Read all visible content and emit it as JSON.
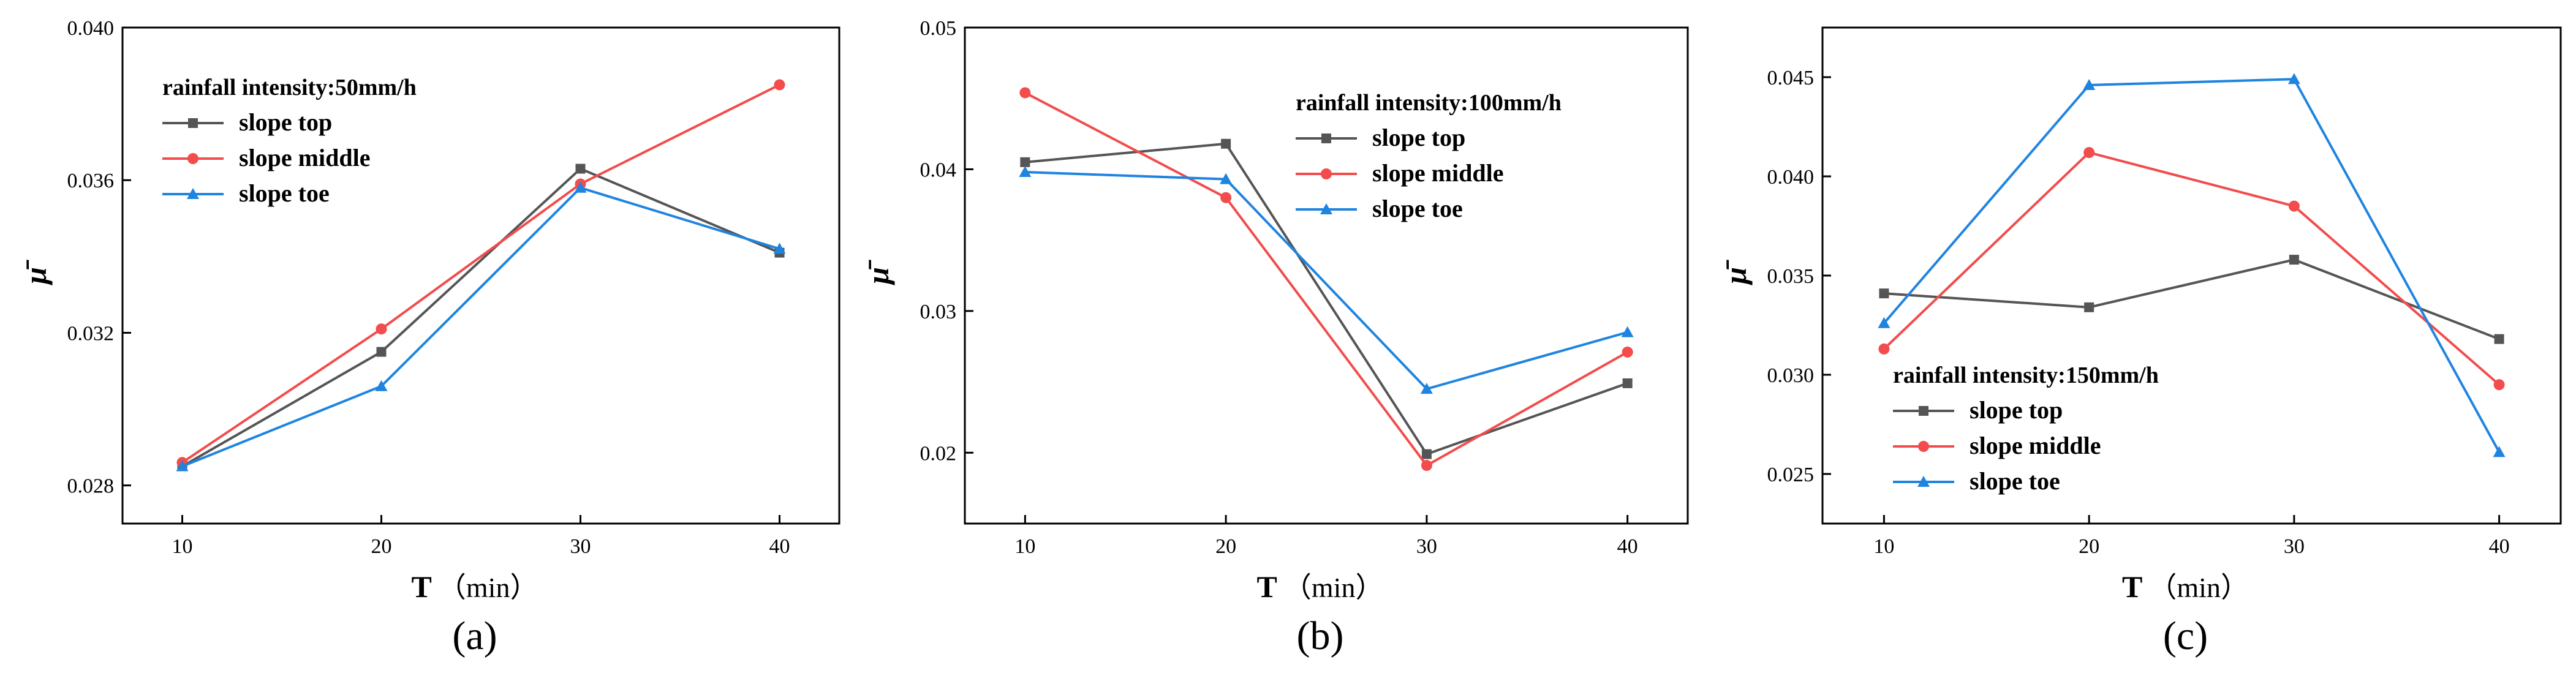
{
  "chart_data": [
    {
      "type": "line",
      "panel_label": "(a)",
      "title": "",
      "xlabel": "T",
      "xlabel_unit": "（min）",
      "ylabel": "μ̄",
      "x": [
        10,
        20,
        30,
        40
      ],
      "xticks": [
        "10",
        "20",
        "30",
        "40"
      ],
      "xlim": [
        7,
        43
      ],
      "ylim": [
        0.027,
        0.04
      ],
      "yticks": [
        0.028,
        0.032,
        0.036,
        0.04
      ],
      "ytick_labels": [
        "0.028",
        "0.032",
        "0.036",
        "0.040"
      ],
      "legend": {
        "title": "rainfall intensity:50mm/h",
        "placement": "upper-left"
      },
      "grid": false,
      "series": [
        {
          "name": "slope top",
          "color": "#555555",
          "marker": "square",
          "values": [
            0.0285,
            0.0315,
            0.0363,
            0.0341
          ]
        },
        {
          "name": "slope middle",
          "color": "#f24c4c",
          "marker": "circle",
          "values": [
            0.0286,
            0.0321,
            0.0359,
            0.0385
          ]
        },
        {
          "name": "slope toe",
          "color": "#1f84e0",
          "marker": "triangle",
          "values": [
            0.0285,
            0.0306,
            0.0358,
            0.0342
          ]
        }
      ]
    },
    {
      "type": "line",
      "panel_label": "(b)",
      "title": "",
      "xlabel": "T",
      "xlabel_unit": "（min）",
      "ylabel": "μ̄",
      "x": [
        10,
        20,
        30,
        40
      ],
      "xticks": [
        "10",
        "20",
        "30",
        "40"
      ],
      "xlim": [
        7,
        43
      ],
      "ylim": [
        0.015,
        0.05
      ],
      "yticks": [
        0.02,
        0.03,
        0.04,
        0.05
      ],
      "ytick_labels": [
        "0.02",
        "0.03",
        "0.04",
        "0.05"
      ],
      "legend": {
        "title": "rainfall intensity:100mm/h",
        "placement": "upper-right"
      },
      "grid": false,
      "series": [
        {
          "name": "slope top",
          "color": "#555555",
          "marker": "square",
          "values": [
            0.0405,
            0.0418,
            0.0199,
            0.0249
          ]
        },
        {
          "name": "slope middle",
          "color": "#f24c4c",
          "marker": "circle",
          "values": [
            0.0454,
            0.038,
            0.0191,
            0.0271
          ]
        },
        {
          "name": "slope toe",
          "color": "#1f84e0",
          "marker": "triangle",
          "values": [
            0.0398,
            0.0393,
            0.0245,
            0.0285
          ]
        }
      ]
    },
    {
      "type": "line",
      "panel_label": "(c)",
      "title": "",
      "xlabel": "T",
      "xlabel_unit": "（min）",
      "ylabel": "μ̄",
      "x": [
        10,
        20,
        30,
        40
      ],
      "xticks": [
        "10",
        "20",
        "30",
        "40"
      ],
      "xlim": [
        7,
        43
      ],
      "ylim": [
        0.0225,
        0.0475
      ],
      "yticks": [
        0.025,
        0.03,
        0.035,
        0.04,
        0.045
      ],
      "ytick_labels": [
        "0.025",
        "0.030",
        "0.035",
        "0.040",
        "0.045"
      ],
      "legend": {
        "title": "rainfall intensity:150mm/h",
        "placement": "lower-left"
      },
      "grid": false,
      "series": [
        {
          "name": "slope top",
          "color": "#555555",
          "marker": "square",
          "values": [
            0.0341,
            0.0334,
            0.0358,
            0.0318
          ]
        },
        {
          "name": "slope middle",
          "color": "#f24c4c",
          "marker": "circle",
          "values": [
            0.0313,
            0.0412,
            0.0385,
            0.0295
          ]
        },
        {
          "name": "slope toe",
          "color": "#1f84e0",
          "marker": "triangle",
          "values": [
            0.0326,
            0.0446,
            0.0449,
            0.0261
          ]
        }
      ]
    }
  ]
}
